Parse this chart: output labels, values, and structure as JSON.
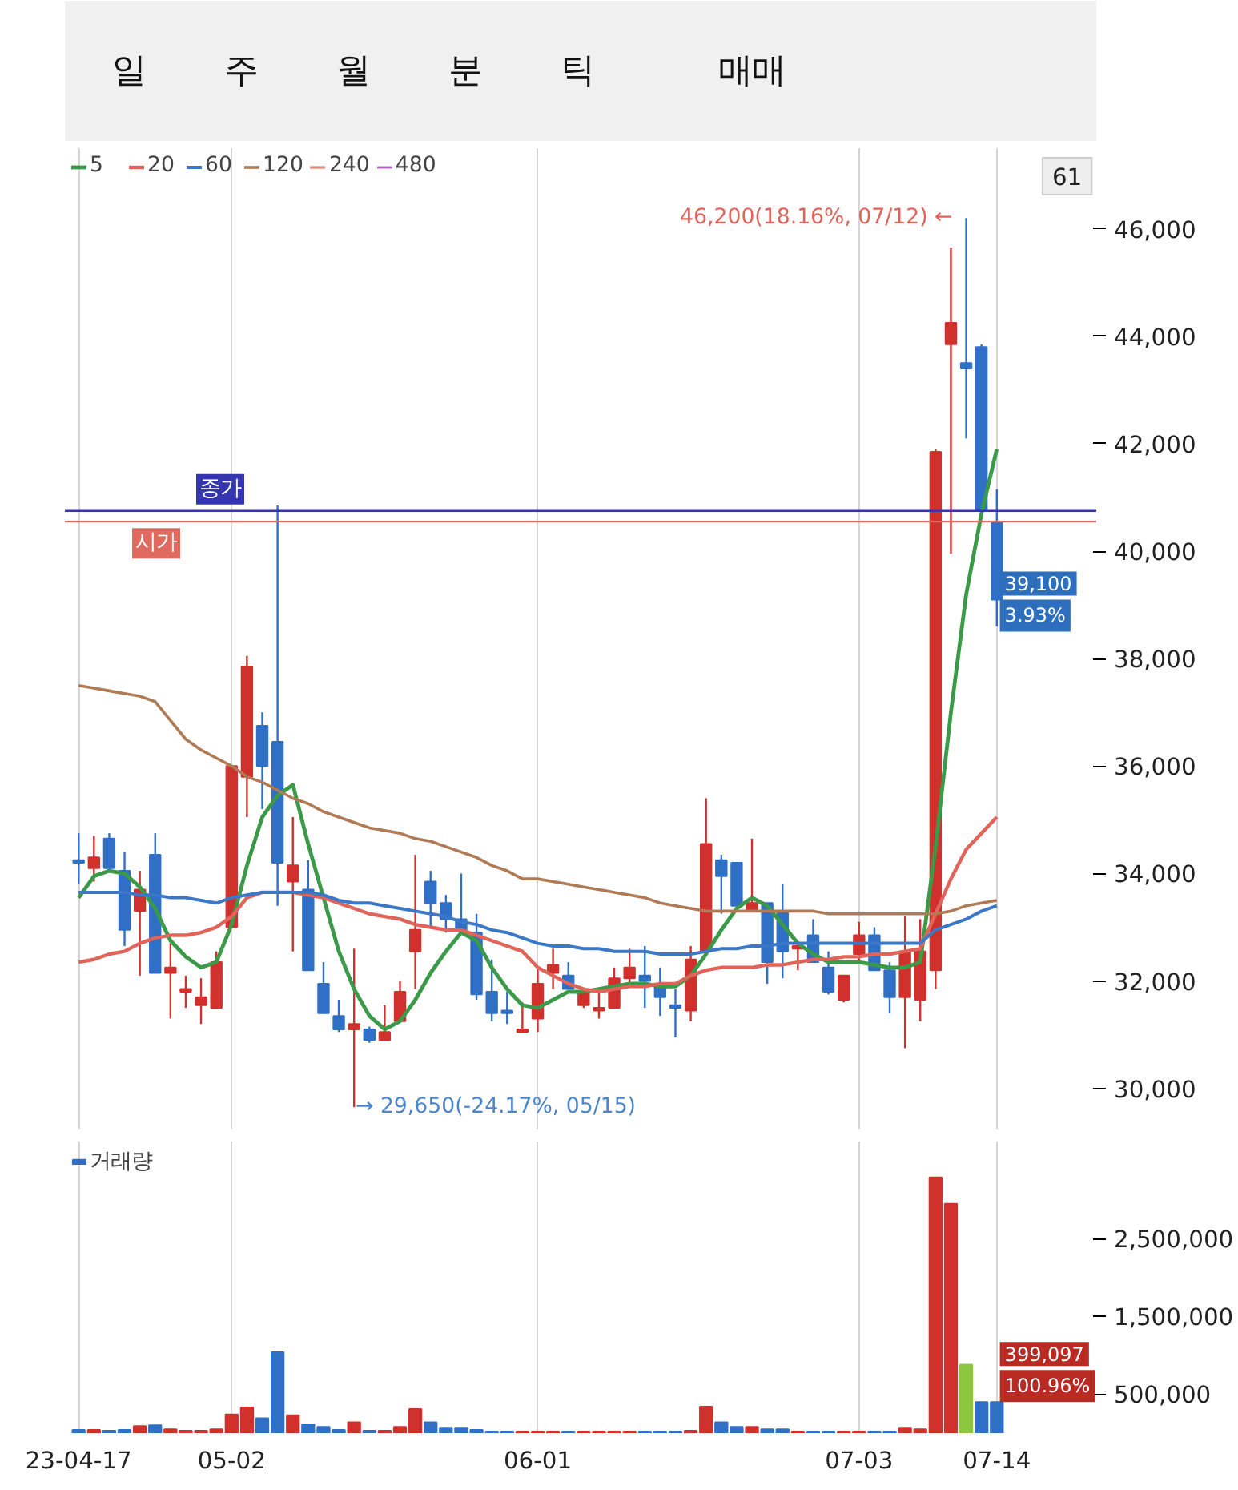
{
  "chart_data": [
    {
      "type": "other",
      "annotations": [
        "일",
        "주",
        "월",
        "분",
        "틱",
        "매매"
      ]
    },
    {
      "type": "candlestick",
      "categories": [
        null,
        null,
        null,
        null,
        null,
        null,
        null,
        null,
        null,
        null,
        null,
        null,
        null,
        null,
        null,
        null,
        null,
        null,
        null,
        null,
        null,
        null,
        null,
        null,
        null,
        null,
        null,
        null,
        null,
        null,
        null,
        null,
        null,
        null,
        null,
        null,
        null,
        null,
        null,
        null,
        null,
        null,
        null,
        null,
        null,
        null,
        null,
        null,
        null,
        null,
        null,
        null,
        null,
        null,
        null,
        null,
        null,
        null,
        null,
        null,
        null
      ],
      "ohlc": [
        [
          34250,
          34750,
          33800,
          34200
        ],
        [
          34100,
          34700,
          33850,
          34300
        ],
        [
          34650,
          34750,
          34050,
          34100
        ],
        [
          34050,
          34400,
          32650,
          32950
        ],
        [
          33300,
          34050,
          32100,
          33700
        ],
        [
          34350,
          34750,
          32150,
          32150
        ],
        [
          32150,
          32700,
          31300,
          32250
        ],
        [
          31800,
          32100,
          31500,
          31850
        ],
        [
          31550,
          32050,
          31200,
          31700
        ],
        [
          31500,
          32550,
          31500,
          32350
        ],
        [
          33000,
          36000,
          33000,
          36000
        ],
        [
          35800,
          38050,
          35050,
          37850
        ],
        [
          36750,
          37000,
          35200,
          36000
        ],
        [
          36450,
          40850,
          33400,
          34200
        ],
        [
          33850,
          35050,
          32550,
          34150
        ],
        [
          33700,
          34250,
          32200,
          32200
        ],
        [
          31950,
          32350,
          31400,
          31400
        ],
        [
          31350,
          31650,
          31050,
          31100
        ],
        [
          31100,
          32600,
          29650,
          31200
        ],
        [
          31100,
          31150,
          30850,
          30900
        ],
        [
          30900,
          31550,
          30900,
          31050
        ],
        [
          31250,
          32000,
          31250,
          31800
        ],
        [
          32550,
          34350,
          31850,
          32950
        ],
        [
          33850,
          34050,
          33000,
          33450
        ],
        [
          33450,
          33600,
          32900,
          33150
        ],
        [
          33150,
          34000,
          32950,
          32950
        ],
        [
          32900,
          33250,
          31650,
          31750
        ],
        [
          31800,
          32400,
          31250,
          31400
        ],
        [
          31450,
          31800,
          31200,
          31400
        ],
        [
          31050,
          31600,
          31050,
          31100
        ],
        [
          31300,
          32250,
          31050,
          31950
        ],
        [
          32150,
          32600,
          31850,
          32300
        ],
        [
          32100,
          32350,
          31850,
          31850
        ],
        [
          31550,
          31800,
          31500,
          31800
        ],
        [
          31450,
          31800,
          31300,
          31500
        ],
        [
          31500,
          32250,
          31500,
          32050
        ],
        [
          32050,
          32600,
          31950,
          32250
        ],
        [
          32100,
          32650,
          31500,
          32000
        ],
        [
          31950,
          32250,
          31350,
          31700
        ],
        [
          31550,
          31850,
          30950,
          31500
        ],
        [
          31450,
          32650,
          31250,
          32400
        ],
        [
          32550,
          35400,
          32550,
          34550
        ],
        [
          34250,
          34350,
          33250,
          33950
        ],
        [
          34200,
          34200,
          33400,
          33400
        ],
        [
          33300,
          34650,
          33300,
          33450
        ],
        [
          33450,
          33450,
          31950,
          32350
        ],
        [
          33300,
          33800,
          32050,
          32550
        ],
        [
          32600,
          32700,
          32200,
          32650
        ],
        [
          32850,
          33150,
          32350,
          32350
        ],
        [
          32250,
          32550,
          31750,
          31800
        ],
        [
          31650,
          32100,
          31600,
          32100
        ],
        [
          32500,
          33100,
          32350,
          32850
        ],
        [
          32850,
          33000,
          32200,
          32200
        ],
        [
          32200,
          32350,
          31400,
          31700
        ],
        [
          31700,
          33200,
          30750,
          32550
        ],
        [
          31650,
          33150,
          31250,
          32550
        ],
        [
          32200,
          41900,
          31850,
          41850
        ],
        [
          43850,
          45650,
          39950,
          44250
        ],
        [
          43500,
          46200,
          42100,
          43400
        ],
        [
          43800,
          43850,
          40700,
          40750
        ],
        [
          40550,
          41150,
          38600,
          39100
        ]
      ],
      "series": [
        {
          "name": "5",
          "type": "line",
          "color": "#3a9a48",
          "values": [
            33550,
            33950,
            34050,
            34000,
            33750,
            33350,
            32750,
            32450,
            32250,
            32350,
            33050,
            34150,
            35050,
            35450,
            35650,
            34550,
            33550,
            32550,
            31850,
            31350,
            31100,
            31250,
            31650,
            32150,
            32550,
            32900,
            32750,
            32250,
            31850,
            31550,
            31500,
            31650,
            31800,
            31800,
            31850,
            31900,
            31950,
            31950,
            31900,
            31900,
            32100,
            32500,
            32950,
            33350,
            33550,
            33400,
            33050,
            32700,
            32500,
            32350,
            32350,
            32350,
            32300,
            32250,
            32250,
            32350,
            34500,
            37000,
            39200,
            40700,
            41900
          ]
        },
        {
          "name": "20",
          "type": "line",
          "color": "#e0645a",
          "values": [
            32350,
            32400,
            32500,
            32550,
            32700,
            32800,
            32850,
            32850,
            32900,
            33000,
            33200,
            33550,
            33650,
            33650,
            33650,
            33600,
            33550,
            33450,
            33350,
            33250,
            33200,
            33150,
            33050,
            33000,
            32950,
            32950,
            32850,
            32750,
            32650,
            32550,
            32250,
            32100,
            31950,
            31850,
            31800,
            31850,
            31900,
            31900,
            31950,
            31950,
            32100,
            32200,
            32250,
            32250,
            32250,
            32300,
            32300,
            32350,
            32400,
            32400,
            32450,
            32450,
            32500,
            32500,
            32550,
            32600,
            33250,
            33900,
            34450,
            34750,
            35050
          ]
        },
        {
          "name": "60",
          "type": "line",
          "color": "#3b78c8",
          "values": [
            33650,
            33650,
            33650,
            33650,
            33600,
            33600,
            33550,
            33550,
            33500,
            33450,
            33550,
            33600,
            33650,
            33650,
            33650,
            33650,
            33600,
            33500,
            33450,
            33450,
            33400,
            33350,
            33300,
            33250,
            33200,
            33100,
            33050,
            32950,
            32900,
            32800,
            32700,
            32650,
            32650,
            32600,
            32600,
            32550,
            32550,
            32550,
            32500,
            32500,
            32500,
            32550,
            32600,
            32600,
            32650,
            32650,
            32700,
            32700,
            32700,
            32700,
            32700,
            32700,
            32700,
            32700,
            32700,
            32700,
            32950,
            33050,
            33150,
            33300,
            33400
          ]
        },
        {
          "name": "120",
          "type": "line",
          "color": "#b07a55",
          "values": [
            37500,
            37450,
            37400,
            37350,
            37300,
            37200,
            36850,
            36500,
            36300,
            36150,
            36000,
            35800,
            35700,
            35550,
            35400,
            35300,
            35150,
            35050,
            34950,
            34850,
            34800,
            34750,
            34650,
            34600,
            34500,
            34400,
            34300,
            34150,
            34050,
            33900,
            33900,
            33850,
            33800,
            33750,
            33700,
            33650,
            33600,
            33550,
            33450,
            33400,
            33350,
            33300,
            33300,
            33300,
            33300,
            33300,
            33300,
            33300,
            33300,
            33250,
            33250,
            33250,
            33250,
            33250,
            33250,
            33250,
            33250,
            33300,
            33400,
            33450,
            33500
          ]
        },
        {
          "name": "240",
          "type": "line",
          "color": "#e8837a",
          "values": [
            null,
            null,
            null,
            null,
            null,
            null,
            null,
            null,
            null,
            null,
            null,
            null,
            null,
            null,
            null,
            null,
            null,
            null,
            null,
            null,
            null,
            null,
            null,
            null,
            null,
            null,
            null,
            null,
            null,
            null,
            null,
            null,
            null,
            null,
            null,
            null,
            null,
            null,
            null,
            null,
            null,
            null,
            null,
            null,
            null,
            null,
            null,
            null,
            null,
            null,
            null,
            null,
            null,
            null,
            null,
            null,
            null,
            null,
            null,
            null,
            null
          ]
        },
        {
          "name": "480",
          "type": "line",
          "color": "#b05cc8",
          "values": [
            null,
            null,
            null,
            null,
            null,
            null,
            null,
            null,
            null,
            null,
            null,
            null,
            null,
            null,
            null,
            null,
            null,
            null,
            null,
            null,
            null,
            null,
            null,
            null,
            null,
            null,
            null,
            null,
            null,
            null,
            null,
            null,
            null,
            null,
            null,
            null,
            null,
            null,
            null,
            null,
            null,
            null,
            null,
            null,
            null,
            null,
            null,
            null,
            null,
            null,
            null,
            null,
            null,
            null,
            null,
            null,
            null,
            null,
            null,
            null,
            null
          ]
        }
      ],
      "ylim": [
        29250,
        47500
      ],
      "yticks": [
        {
          "value": 30000,
          "label": "30,000"
        },
        {
          "value": 32000,
          "label": "32,000"
        },
        {
          "value": 34000,
          "label": "34,000"
        },
        {
          "value": 36000,
          "label": "36,000"
        },
        {
          "value": 38000,
          "label": "38,000"
        },
        {
          "value": 40000,
          "label": "40,000"
        },
        {
          "value": 42000,
          "label": "42,000"
        },
        {
          "value": 44000,
          "label": "44,000"
        },
        {
          "value": 46000,
          "label": "46,000"
        }
      ],
      "ref_lines": [
        {
          "axis": "y",
          "value": 40750,
          "label": "종가",
          "color": "#3535b0"
        },
        {
          "axis": "y",
          "value": 40550,
          "label": "시가",
          "color": "#e06a60"
        }
      ],
      "annotations": [
        "61",
        "46,200(18.16%, 07/12) ←",
        "→ 29,650(-24.17%, 05/15)",
        "39,100",
        "3.93%"
      ],
      "grid": "x",
      "legend": "top left",
      "tick_labels": "y"
    },
    {
      "type": "bar",
      "categories": [
        "23-04-17",
        null,
        null,
        null,
        null,
        null,
        null,
        null,
        null,
        null,
        "05-02",
        null,
        null,
        null,
        null,
        null,
        null,
        null,
        null,
        null,
        null,
        null,
        null,
        null,
        null,
        null,
        null,
        null,
        null,
        null,
        "06-01",
        null,
        null,
        null,
        null,
        null,
        null,
        null,
        null,
        null,
        null,
        null,
        null,
        null,
        null,
        null,
        null,
        null,
        null,
        null,
        null,
        "07-03",
        null,
        null,
        null,
        null,
        null,
        null,
        null,
        null,
        "07-14"
      ],
      "series": [
        {
          "name": "거래량",
          "values": [
            40000,
            40000,
            30000,
            40000,
            90000,
            100000,
            50000,
            30000,
            30000,
            50000,
            240000,
            330000,
            190000,
            1040000,
            230000,
            110000,
            80000,
            40000,
            140000,
            30000,
            30000,
            80000,
            310000,
            140000,
            70000,
            70000,
            40000,
            20000,
            20000,
            20000,
            20000,
            20000,
            20000,
            20000,
            20000,
            20000,
            20000,
            20000,
            20000,
            20000,
            30000,
            340000,
            140000,
            80000,
            80000,
            50000,
            50000,
            20000,
            20000,
            20000,
            20000,
            20000,
            20000,
            20000,
            70000,
            50000,
            3290000,
            2950000,
            880000,
            400000,
            399097
          ],
          "colors": [
            "#2f6fc6",
            "#d0312d",
            "#2f6fc6",
            "#2f6fc6",
            "#d0312d",
            "#2f6fc6",
            "#d0312d",
            "#d0312d",
            "#d0312d",
            "#d0312d",
            "#d0312d",
            "#d0312d",
            "#2f6fc6",
            "#2f6fc6",
            "#d0312d",
            "#2f6fc6",
            "#2f6fc6",
            "#2f6fc6",
            "#d0312d",
            "#2f6fc6",
            "#d0312d",
            "#d0312d",
            "#d0312d",
            "#2f6fc6",
            "#2f6fc6",
            "#2f6fc6",
            "#2f6fc6",
            "#2f6fc6",
            "#2f6fc6",
            "#d0312d",
            "#d0312d",
            "#d0312d",
            "#2f6fc6",
            "#d0312d",
            "#d0312d",
            "#d0312d",
            "#d0312d",
            "#2f6fc6",
            "#2f6fc6",
            "#2f6fc6",
            "#d0312d",
            "#d0312d",
            "#2f6fc6",
            "#2f6fc6",
            "#d0312d",
            "#2f6fc6",
            "#2f6fc6",
            "#d0312d",
            "#2f6fc6",
            "#2f6fc6",
            "#d0312d",
            "#d0312d",
            "#2f6fc6",
            "#2f6fc6",
            "#d0312d",
            "#d0312d",
            "#d0312d",
            "#d0312d",
            "#8dc63f",
            "#2f6fc6",
            "#2f6fc6"
          ]
        }
      ],
      "ylim": [
        0,
        3750000
      ],
      "yticks": [
        {
          "value": 500000,
          "label": "500,000"
        },
        {
          "value": 1500000,
          "label": "1,500,000"
        },
        {
          "value": 2500000,
          "label": "2,500,000"
        }
      ],
      "annotations": [
        "399,097",
        "100.96%"
      ],
      "grid": "x",
      "legend": "top left"
    }
  ]
}
